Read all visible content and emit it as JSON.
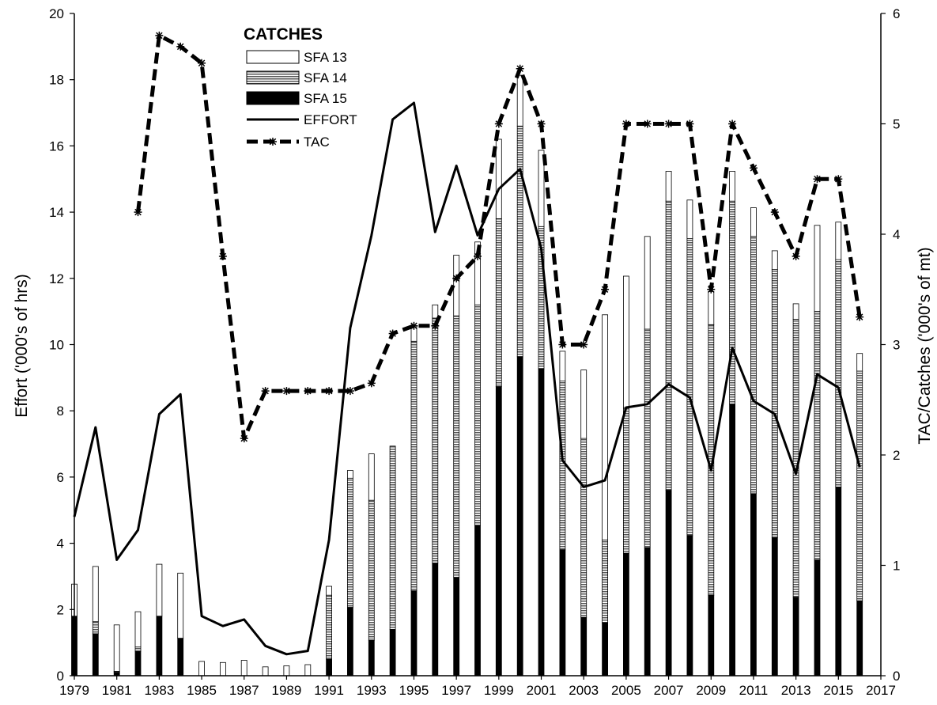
{
  "chart_data": {
    "type": "bar",
    "title": "",
    "ylabel_left": "Effort ('000's of hrs)",
    "ylabel_right": "TAC/Catches ('000's of mt)",
    "ylim_left": [
      0,
      20
    ],
    "ylim_right": [
      0,
      6
    ],
    "xlim": [
      1979,
      2017
    ],
    "left_ticks": [
      "0",
      "2",
      "4",
      "6",
      "8",
      "10",
      "12",
      "14",
      "16",
      "18",
      "20"
    ],
    "right_ticks": [
      "0",
      "1",
      "2",
      "3",
      "4",
      "5",
      "6"
    ],
    "x_ticks": [
      "1979",
      "1981",
      "1983",
      "1985",
      "1987",
      "1989",
      "1991",
      "1993",
      "1995",
      "1997",
      "1999",
      "2001",
      "2003",
      "2005",
      "2007",
      "2009",
      "2011",
      "2013",
      "2015",
      "2017"
    ],
    "legend": {
      "title": "CATCHES",
      "position": "top-left",
      "entries": [
        {
          "label": "SFA 13",
          "key": "sfa13"
        },
        {
          "label": "SFA 14",
          "key": "sfa14"
        },
        {
          "label": "SFA 15",
          "key": "sfa15"
        },
        {
          "label": "EFFORT",
          "key": "effort"
        },
        {
          "label": "TAC",
          "key": "tac"
        }
      ]
    },
    "years": [
      1979,
      1980,
      1981,
      1982,
      1983,
      1984,
      1985,
      1986,
      1987,
      1988,
      1989,
      1990,
      1991,
      1992,
      1993,
      1994,
      1995,
      1996,
      1997,
      1998,
      1999,
      2000,
      2001,
      2002,
      2003,
      2004,
      2005,
      2006,
      2007,
      2008,
      2009,
      2010,
      2011,
      2012,
      2013,
      2014,
      2015,
      2016
    ],
    "series": [
      {
        "name": "SFA 15",
        "key": "sfa15",
        "axis": "right",
        "stack": "catches",
        "values": [
          0.54,
          0.38,
          0.03,
          0.22,
          0.54,
          0.34,
          0,
          0,
          0,
          0,
          0,
          0,
          0.15,
          0.62,
          0.32,
          0.42,
          0.77,
          1.02,
          0.89,
          1.36,
          2.62,
          2.89,
          2.78,
          1.14,
          0.53,
          0.48,
          1.11,
          1.16,
          1.68,
          1.27,
          0.73,
          2.46,
          1.65,
          1.25,
          0.71,
          1.05,
          1.71,
          0.68
        ]
      },
      {
        "name": "SFA 14",
        "key": "sfa14",
        "axis": "right",
        "stack": "catches",
        "values": [
          0,
          0.11,
          0.01,
          0.04,
          0,
          0,
          0,
          0,
          0,
          0,
          0,
          0,
          0.58,
          1.17,
          1.27,
          1.66,
          2.26,
          2.22,
          2.37,
          2.0,
          1.52,
          2.09,
          1.29,
          1.53,
          1.62,
          0.75,
          1.32,
          1.98,
          2.62,
          2.69,
          2.45,
          1.84,
          2.33,
          2.43,
          2.52,
          2.25,
          2.06,
          2.08
        ]
      },
      {
        "name": "SFA 13",
        "key": "sfa13",
        "axis": "right",
        "stack": "catches",
        "values": [
          0.29,
          0.5,
          0.42,
          0.32,
          0.47,
          0.59,
          0.13,
          0.12,
          0.14,
          0.08,
          0.09,
          0.1,
          0.08,
          0.07,
          0.42,
          0.0,
          0.14,
          0.12,
          0.55,
          0.57,
          0.72,
          0.46,
          0.69,
          0.27,
          0.62,
          2.04,
          1.19,
          0.84,
          0.27,
          0.35,
          0.3,
          0.27,
          0.26,
          0.17,
          0.14,
          0.78,
          0.34,
          0.16
        ]
      },
      {
        "name": "EFFORT",
        "key": "effort",
        "type": "line",
        "axis": "left",
        "values": [
          4.8,
          7.5,
          3.5,
          4.4,
          7.9,
          8.5,
          1.8,
          1.5,
          1.7,
          0.9,
          0.65,
          0.75,
          4.1,
          10.5,
          13.3,
          16.8,
          17.3,
          13.4,
          15.4,
          13.3,
          14.7,
          15.3,
          12.9,
          6.5,
          5.7,
          5.9,
          8.1,
          8.2,
          8.8,
          8.4,
          6.2,
          9.9,
          8.3,
          7.9,
          6.1,
          9.1,
          8.7,
          6.3
        ]
      },
      {
        "name": "TAC",
        "key": "tac",
        "type": "line",
        "axis": "right",
        "dashed": true,
        "values": [
          null,
          null,
          null,
          4.2,
          5.8,
          5.7,
          5.55,
          3.8,
          2.15,
          2.58,
          2.58,
          2.58,
          2.58,
          2.58,
          2.65,
          3.1,
          3.17,
          3.17,
          3.6,
          3.8,
          5.0,
          5.5,
          5.0,
          3.0,
          3.0,
          3.5,
          5.0,
          5.0,
          5.0,
          5.0,
          3.5,
          5.0,
          4.6,
          4.2,
          3.8,
          4.5,
          4.5,
          3.25
        ]
      }
    ]
  }
}
